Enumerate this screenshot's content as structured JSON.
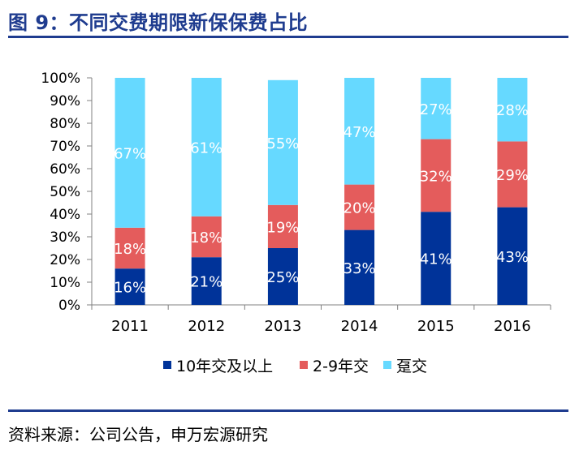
{
  "header": {
    "title": "图 9：不同交费期限新保保费占比"
  },
  "footer": {
    "source": "资料来源：公司公告，申万宏源研究"
  },
  "colors": {
    "accent": "#1f3c8f",
    "series_dark": "#003399",
    "series_red": "#e45c5c",
    "series_light": "#66d9ff"
  },
  "chart_data": {
    "type": "bar",
    "stacked": true,
    "categories": [
      "2011",
      "2012",
      "2013",
      "2014",
      "2015",
      "2016"
    ],
    "series": [
      {
        "name": "10年交及以上",
        "color": "#003399",
        "values": [
          16,
          21,
          25,
          33,
          41,
          43
        ],
        "labels": [
          "16%",
          "21%",
          "25%",
          "33%",
          "41%",
          "43%"
        ]
      },
      {
        "name": "2-9年交",
        "color": "#e45c5c",
        "values": [
          18,
          18,
          19,
          20,
          32,
          29
        ],
        "labels": [
          "18%",
          "18%",
          "19%",
          "20%",
          "32%",
          "29%"
        ]
      },
      {
        "name": "趸交",
        "color": "#66d9ff",
        "values": [
          67,
          61,
          55,
          47,
          27,
          28
        ],
        "labels": [
          "67%",
          "61%",
          "55%",
          "47%",
          "27%",
          "28%"
        ]
      }
    ],
    "ylim": [
      0,
      100
    ],
    "yticks": [
      "0%",
      "10%",
      "20%",
      "30%",
      "40%",
      "50%",
      "60%",
      "70%",
      "80%",
      "90%",
      "100%"
    ],
    "legend_position": "bottom",
    "grid": false
  }
}
